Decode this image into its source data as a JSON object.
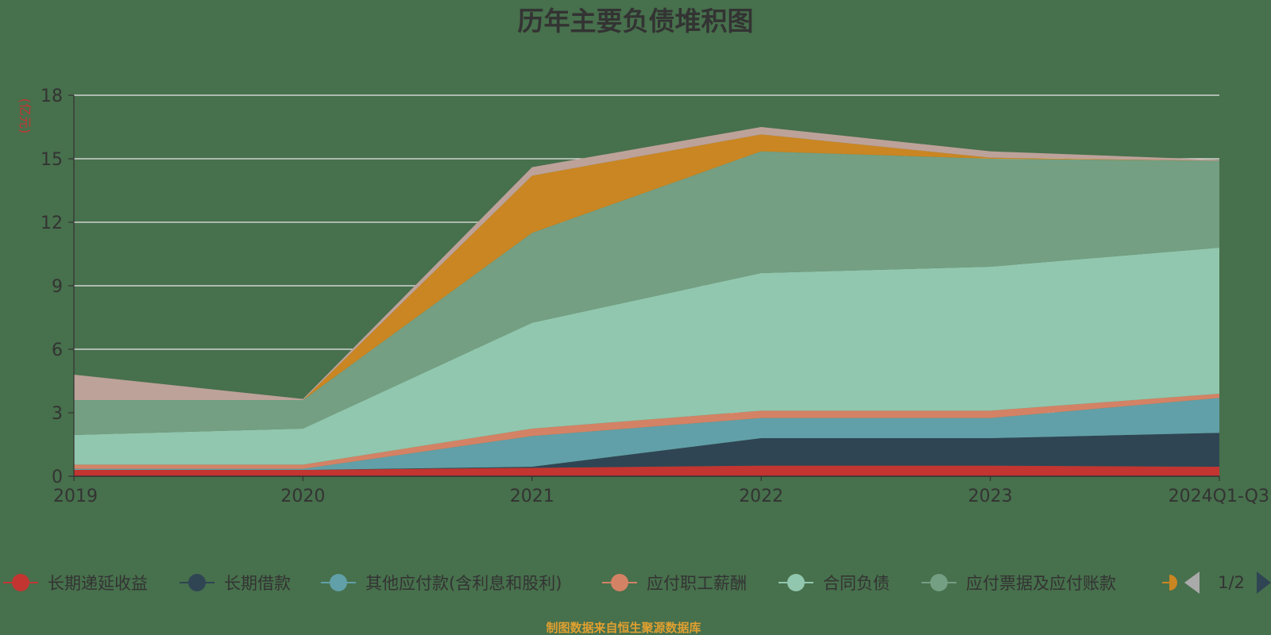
{
  "chart_data": {
    "type": "area",
    "stacked": true,
    "title": "历年主要负债堆积图",
    "ylabel": "(亿元)",
    "ylim": [
      0,
      18
    ],
    "yticks": [
      0,
      3,
      6,
      9,
      12,
      15,
      18
    ],
    "grid": true,
    "legend_placement": "bottom",
    "categories": [
      "2019",
      "2020",
      "2021",
      "2022",
      "2023",
      "2024Q1-Q3"
    ],
    "series": [
      {
        "name": "长期递延收益",
        "color": "#c23531",
        "values": [
          0.3,
          0.3,
          0.4,
          0.5,
          0.5,
          0.45
        ]
      },
      {
        "name": "长期借款",
        "color": "#2f4554",
        "values": [
          0,
          0,
          0.05,
          1.3,
          1.3,
          1.6
        ]
      },
      {
        "name": "其他应付款(含利息和股利)",
        "color": "#61a0a8",
        "values": [
          0.05,
          0.05,
          1.45,
          0.95,
          0.95,
          1.65
        ]
      },
      {
        "name": "应付职工薪酬",
        "color": "#d48265",
        "values": [
          0.2,
          0.2,
          0.35,
          0.35,
          0.35,
          0.2
        ]
      },
      {
        "name": "合同负债",
        "color": "#91c7ae",
        "values": [
          1.4,
          1.7,
          5.0,
          6.5,
          6.8,
          6.9
        ]
      },
      {
        "name": "应付票据及应付账款",
        "color": "#749f83",
        "values": [
          1.65,
          1.35,
          4.25,
          5.75,
          5.1,
          4.1
        ]
      },
      {
        "name": "",
        "color": "#ca8622",
        "values": [
          0,
          0,
          2.7,
          0.8,
          0.05,
          0
        ]
      },
      {
        "name": "",
        "color": "#bda29a",
        "values": [
          1.2,
          0.05,
          0.4,
          0.35,
          0.3,
          0.05
        ]
      }
    ]
  },
  "legend": {
    "visible_count": 6,
    "page_indicator": "1/2"
  },
  "footer": {
    "source_text": "制图数据来自恒生聚源数据库",
    "source_color": "#e0a030"
  }
}
